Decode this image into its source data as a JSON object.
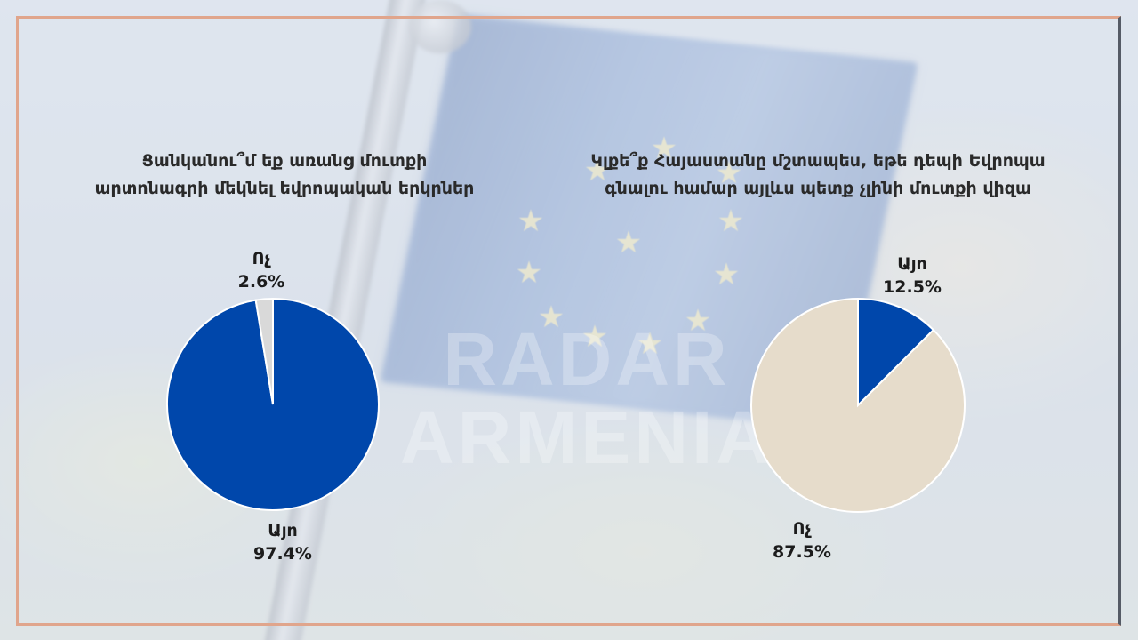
{
  "watermark": {
    "line1": "RADAR",
    "line2": "ARMENIA"
  },
  "colors": {
    "blue": "#0047ab",
    "grey": "#d9d9d9",
    "beige": "#e6dccb",
    "frame": "#e0a58c"
  },
  "chart_data": [
    {
      "type": "pie",
      "title": "Ցանկանու՞մ եք առանց մուտքի արտոնագրի մեկնել եվրոպական երկրներ",
      "title_lines": [
        "Ցանկանու՞մ եք առանց մուտքի",
        "արտոնագրի մեկնել եվրոպական երկրներ"
      ],
      "slices": [
        {
          "label": "Այո",
          "value": 97.4,
          "display": "97.4%",
          "color": "#0047ab"
        },
        {
          "label": "Ոչ",
          "value": 2.6,
          "display": "2.6%",
          "color": "#d9d9d9"
        }
      ]
    },
    {
      "type": "pie",
      "title": "Կլքե՞ք Հայաստանը մշտապես, եթե դեպի Եվրոպա գնալու համար այլևս պետք չլինի մուտքի վիզա",
      "title_lines": [
        "Կլքե՞ք Հայաստանը մշտապես, եթե դեպի Եվրոպա",
        "գնալու համար այլևս պետք չլինի մուտքի վիզա"
      ],
      "slices": [
        {
          "label": "Այո",
          "value": 12.5,
          "display": "12.5%",
          "color": "#0047ab"
        },
        {
          "label": "Ոչ",
          "value": 87.5,
          "display": "87.5%",
          "color": "#e6dccb"
        }
      ]
    }
  ]
}
